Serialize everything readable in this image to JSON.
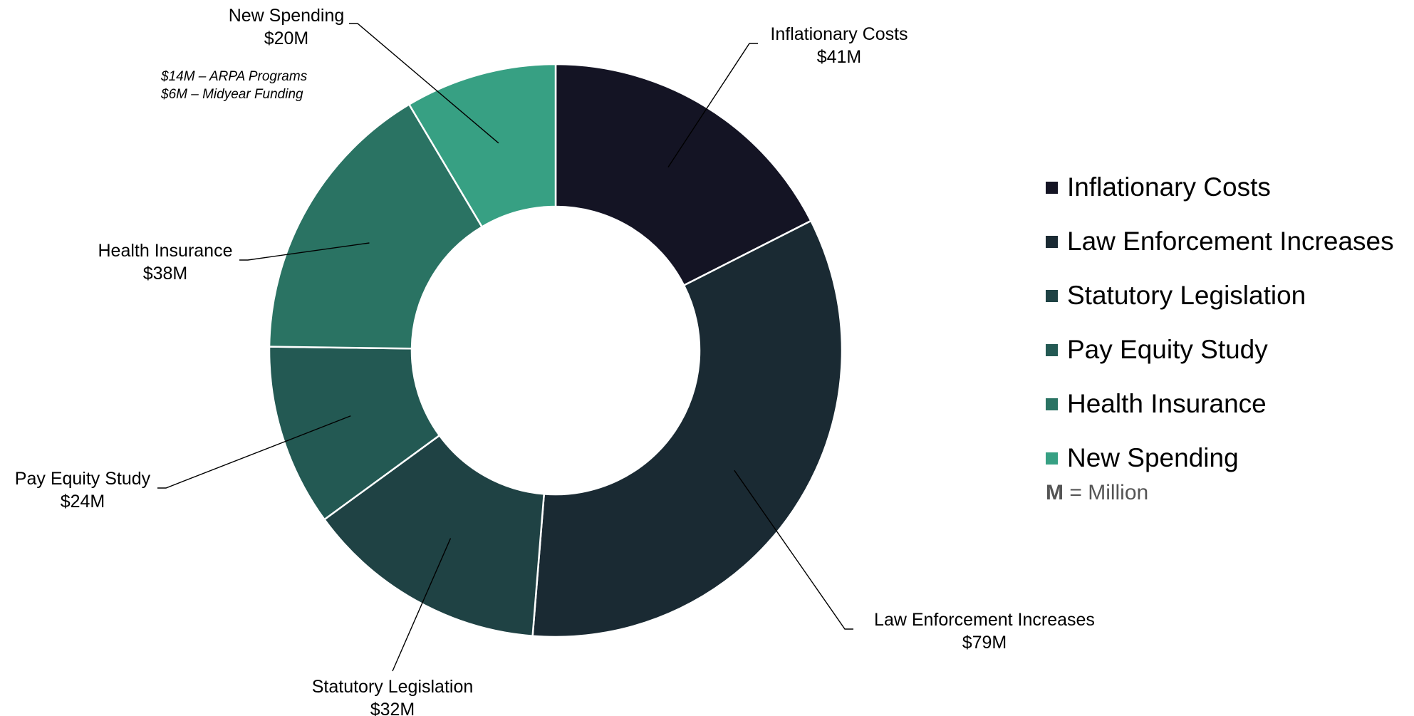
{
  "chart_data": {
    "type": "pie",
    "style": "donut",
    "categories": [
      "Inflationary Costs",
      "Law Enforcement Increases",
      "Statutory Legislation",
      "Pay Equity Study",
      "Health Insurance",
      "New Spending"
    ],
    "values": [
      41,
      79,
      32,
      24,
      38,
      20
    ],
    "value_labels": [
      "$41M",
      "$79M",
      "$32M",
      "$24M",
      "$38M",
      "$20M"
    ],
    "colors": [
      "#141424",
      "#1a2a33",
      "#1f4244",
      "#235953",
      "#2a7363",
      "#37a083"
    ],
    "legend_position": "right",
    "annotation": {
      "lines": [
        "$14M – ARPA Programs",
        "$6M – Midyear Funding"
      ]
    },
    "unit_note": {
      "symbol": "M",
      "text": "= Million"
    }
  }
}
